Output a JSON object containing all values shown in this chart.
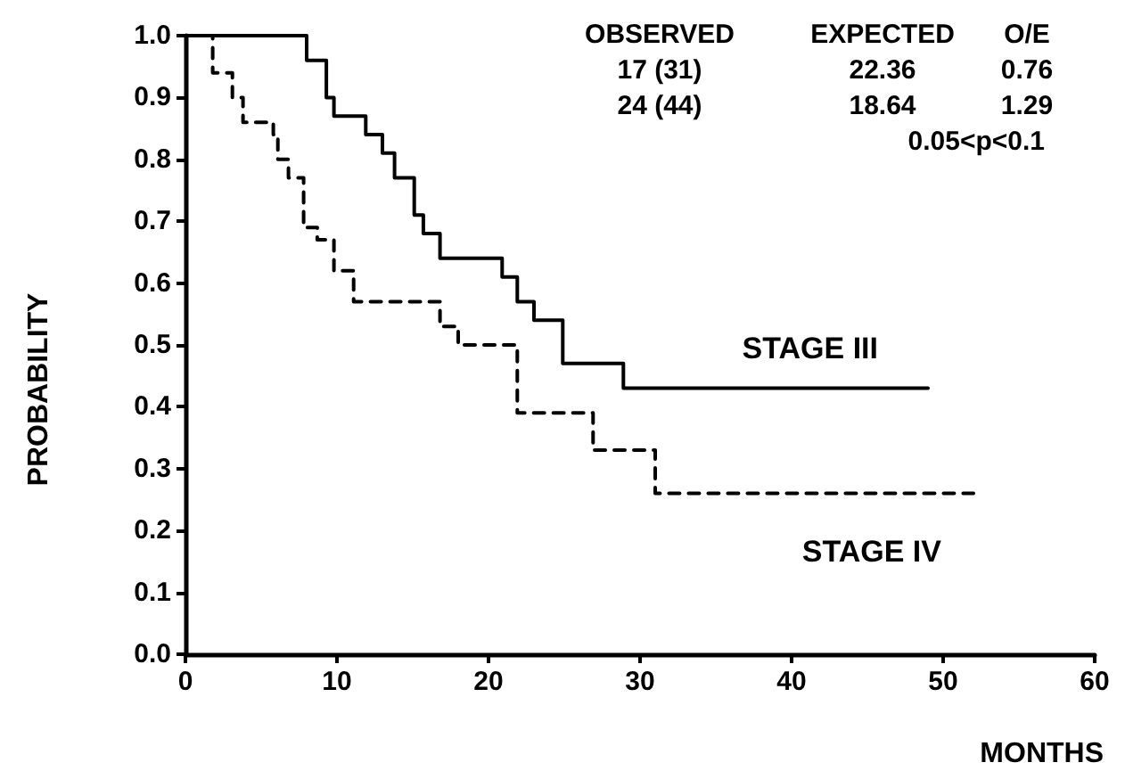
{
  "chart_data": {
    "type": "step",
    "xlabel": "MONTHS",
    "ylabel": "PROBABILITY",
    "xlim": [
      0,
      60
    ],
    "xticks": [
      0,
      10,
      20,
      30,
      40,
      50,
      60
    ],
    "ylim": [
      0,
      1
    ],
    "yticks": [
      {
        "value": 0,
        "label": "0.0"
      },
      0.1,
      0.2,
      0.3,
      0.4,
      0.5,
      0.6,
      0.7,
      0.8,
      0.9,
      {
        "value": 1,
        "label": "1.0"
      }
    ],
    "grid": false,
    "legend": false,
    "marker": "none",
    "annotations": [
      "OBSERVED",
      "EXPECTED",
      "O/E",
      "17 (31)",
      "22.36",
      "0.76",
      "24 (44)",
      "18.64",
      "1.29",
      "0.05<p<0.1"
    ],
    "series": [
      {
        "name": "STAGE III",
        "color": "#000000",
        "line_style": "solid",
        "x": [
          0,
          8,
          9.3,
          9.8,
          11.9,
          13,
          13.8,
          15.1,
          15.7,
          16.8,
          20.9,
          21.9,
          23,
          24.9,
          28.9,
          49
        ],
        "values": [
          1,
          0.96,
          0.9,
          0.87,
          0.84,
          0.81,
          0.77,
          0.71,
          0.68,
          0.64,
          0.61,
          0.57,
          0.54,
          0.47,
          0.43,
          0.43
        ]
      },
      {
        "name": "STAGE IV",
        "color": "#000000",
        "line_style": "dashed",
        "x": [
          0,
          1.8,
          3.1,
          3.8,
          5.8,
          6.1,
          6.8,
          7.8,
          8.7,
          9.8,
          11.1,
          16.8,
          18,
          21.9,
          26.9,
          31,
          52
        ],
        "values": [
          1,
          0.94,
          0.9,
          0.86,
          0.84,
          0.8,
          0.77,
          0.69,
          0.67,
          0.62,
          0.57,
          0.53,
          0.5,
          0.39,
          0.33,
          0.26,
          0.26
        ]
      }
    ]
  }
}
